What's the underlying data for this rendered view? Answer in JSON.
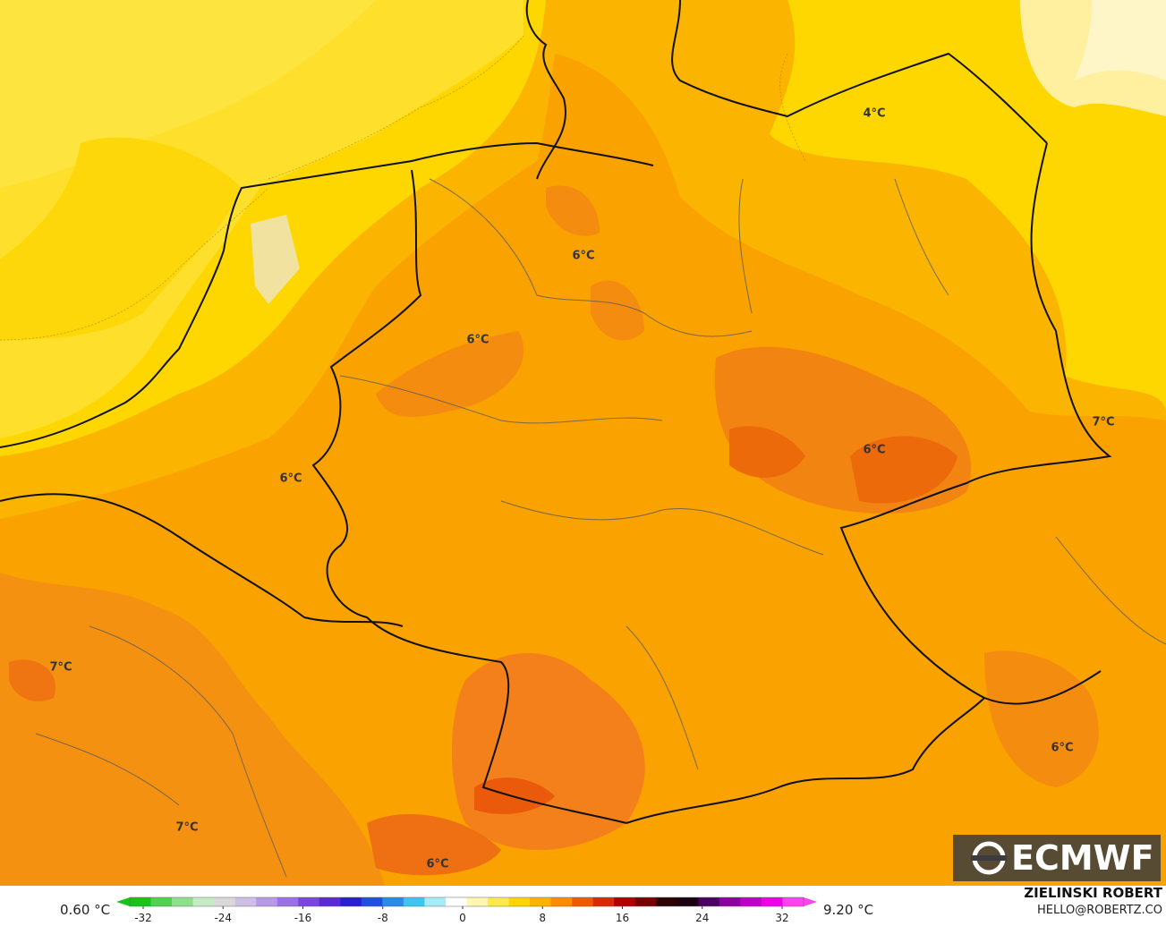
{
  "map": {
    "labels": [
      "4°C",
      "6°C",
      "6°C",
      "6°C",
      "6°C",
      "7°C",
      "7°C",
      "6°C",
      "7°C",
      "6°C"
    ],
    "logo": "ECMWF",
    "author": "ZIELINSKI ROBERT",
    "email": "HELLO@ROBERTZ.CO"
  },
  "colorbar": {
    "min_label": "0.60 °C",
    "max_label": "9.20 °C",
    "ticks": [
      -32,
      -24,
      -16,
      -8,
      0,
      8,
      16,
      24,
      32
    ],
    "colors": [
      "#19c419",
      "#4fd24f",
      "#8ee08e",
      "#c6ecc6",
      "#d9d9d9",
      "#cdbfe6",
      "#b79ae6",
      "#9b6fe6",
      "#7a45e0",
      "#5a2ad6",
      "#2a1fd0",
      "#1f4fe0",
      "#2a8ae8",
      "#3ec4f0",
      "#a6ecf8",
      "#ffffff",
      "#fff6b0",
      "#ffe94a",
      "#ffd400",
      "#ffb300",
      "#ff8c00",
      "#f05a00",
      "#d92a00",
      "#b00000",
      "#7a0000",
      "#2a0000",
      "#1a0010",
      "#4a0060",
      "#8a00a0",
      "#c000c8",
      "#f000e8",
      "#ff40f0"
    ]
  }
}
